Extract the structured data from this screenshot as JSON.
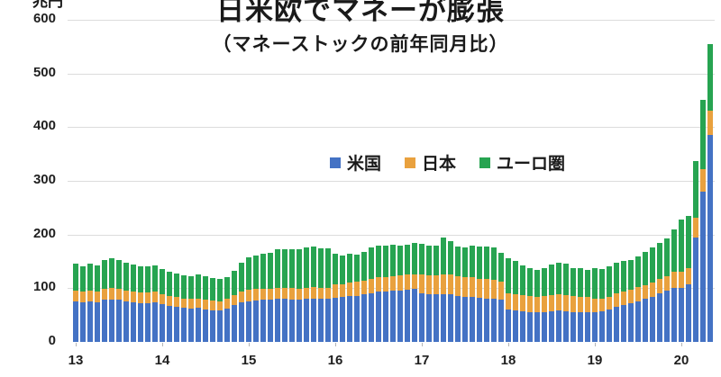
{
  "title": "日米欧でマネーが膨張",
  "subtitle": "（マネーストックの前年同月比）",
  "y_axis": {
    "unit": "兆円",
    "ticks": [
      600,
      500,
      400,
      300,
      200,
      100,
      0
    ]
  },
  "x_axis": {
    "ticks": [
      "13",
      "14",
      "15",
      "16",
      "17",
      "18",
      "19",
      "20"
    ]
  },
  "legend": [
    {
      "label": "米国",
      "color": "#4472C4"
    },
    {
      "label": "日本",
      "color": "#E9A13E"
    },
    {
      "label": "ユーロ圏",
      "color": "#27A451"
    }
  ],
  "chart_data": {
    "type": "bar",
    "stacked": true,
    "title": "日米欧でマネーが膨張",
    "subtitle": "（マネーストックの前年同月比）",
    "ylabel": "兆円",
    "ylim": [
      0,
      600
    ],
    "grid": "horizontal",
    "legend_position": "upper-center-inside",
    "x": [
      "2013-01",
      "2013-02",
      "2013-03",
      "2013-04",
      "2013-05",
      "2013-06",
      "2013-07",
      "2013-08",
      "2013-09",
      "2013-10",
      "2013-11",
      "2013-12",
      "2014-01",
      "2014-02",
      "2014-03",
      "2014-04",
      "2014-05",
      "2014-06",
      "2014-07",
      "2014-08",
      "2014-09",
      "2014-10",
      "2014-11",
      "2014-12",
      "2015-01",
      "2015-02",
      "2015-03",
      "2015-04",
      "2015-05",
      "2015-06",
      "2015-07",
      "2015-08",
      "2015-09",
      "2015-10",
      "2015-11",
      "2015-12",
      "2016-01",
      "2016-02",
      "2016-03",
      "2016-04",
      "2016-05",
      "2016-06",
      "2016-07",
      "2016-08",
      "2016-09",
      "2016-10",
      "2016-11",
      "2016-12",
      "2017-01",
      "2017-02",
      "2017-03",
      "2017-04",
      "2017-05",
      "2017-06",
      "2017-07",
      "2017-08",
      "2017-09",
      "2017-10",
      "2017-11",
      "2017-12",
      "2018-01",
      "2018-02",
      "2018-03",
      "2018-04",
      "2018-05",
      "2018-06",
      "2018-07",
      "2018-08",
      "2018-09",
      "2018-10",
      "2018-11",
      "2018-12",
      "2019-01",
      "2019-02",
      "2019-03",
      "2019-04",
      "2019-05",
      "2019-06",
      "2019-07",
      "2019-08",
      "2019-09",
      "2019-10",
      "2019-11",
      "2019-12",
      "2020-01",
      "2020-02",
      "2020-03",
      "2020-04",
      "2020-05"
    ],
    "x_tick_month_indices": [
      0,
      12,
      24,
      36,
      48,
      60,
      72,
      84
    ],
    "series": [
      {
        "name": "米国",
        "color": "#4472C4",
        "values": [
          75,
          74,
          75,
          74,
          78,
          79,
          78,
          76,
          74,
          72,
          72,
          73,
          70,
          67,
          65,
          63,
          62,
          63,
          61,
          59,
          58,
          62,
          68,
          74,
          76,
          77,
          78,
          78,
          80,
          80,
          79,
          78,
          80,
          81,
          80,
          80,
          82,
          83,
          85,
          86,
          88,
          91,
          93,
          94,
          95,
          96,
          97,
          98,
          90,
          89,
          88,
          89,
          88,
          86,
          84,
          83,
          82,
          81,
          80,
          78,
          60,
          58,
          57,
          56,
          55,
          56,
          57,
          58,
          57,
          56,
          55,
          55,
          56,
          57,
          60,
          65,
          68,
          72,
          76,
          80,
          84,
          90,
          95,
          101,
          100,
          107,
          195,
          280,
          385
        ]
      },
      {
        "name": "日本",
        "color": "#E9A13E",
        "values": [
          20,
          20,
          20,
          20,
          21,
          21,
          21,
          20,
          20,
          20,
          20,
          20,
          19,
          19,
          19,
          18,
          18,
          18,
          18,
          18,
          18,
          18,
          19,
          20,
          21,
          21,
          21,
          21,
          21,
          21,
          21,
          21,
          21,
          21,
          21,
          21,
          25,
          25,
          25,
          26,
          26,
          27,
          27,
          27,
          28,
          28,
          28,
          28,
          35,
          35,
          36,
          37,
          37,
          36,
          36,
          37,
          36,
          36,
          36,
          35,
          31,
          30,
          30,
          29,
          29,
          29,
          30,
          30,
          30,
          29,
          29,
          29,
          25,
          24,
          24,
          25,
          25,
          25,
          26,
          26,
          27,
          27,
          28,
          29,
          30,
          30,
          36,
          42,
          45
        ]
      },
      {
        "name": "ユーロ圏",
        "color": "#27A451",
        "values": [
          50,
          46,
          50,
          48,
          54,
          55,
          54,
          51,
          50,
          49,
          49,
          49,
          47,
          44,
          43,
          43,
          43,
          44,
          43,
          42,
          42,
          41,
          45,
          54,
          60,
          62,
          65,
          67,
          72,
          72,
          73,
          73,
          75,
          75,
          74,
          74,
          57,
          52,
          55,
          50,
          53,
          58,
          59,
          58,
          58,
          55,
          56,
          59,
          58,
          55,
          56,
          68,
          63,
          55,
          56,
          59,
          59,
          60,
          60,
          53,
          64,
          63,
          56,
          52,
          50,
          52,
          57,
          60,
          59,
          53,
          53,
          50,
          57,
          54,
          56,
          58,
          58,
          56,
          57,
          61,
          65,
          67,
          69,
          79,
          98,
          98,
          105,
          128,
          125
        ]
      }
    ]
  }
}
